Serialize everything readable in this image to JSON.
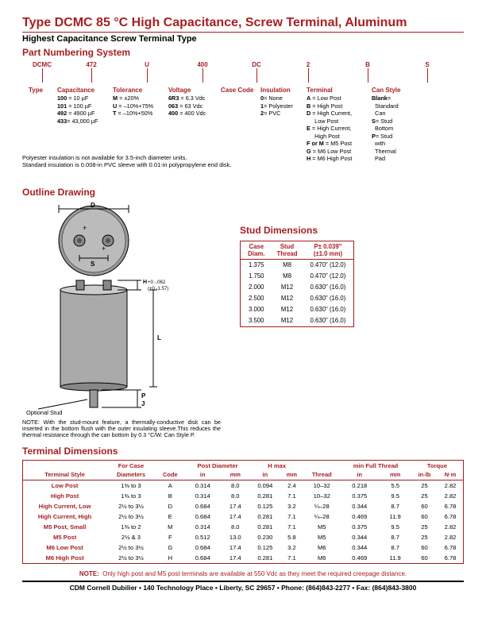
{
  "header": {
    "title": "Type DCMC 85 °C High Capacitance, Screw Terminal, Aluminum",
    "subtitle": "Highest Capacitance Screw Terminal Type",
    "section_partnum": "Part Numbering System",
    "section_outline": "Outline Drawing",
    "section_stud": "Stud Dimensions",
    "section_term": "Terminal Dimensions"
  },
  "partnum": {
    "top": [
      "DCMC",
      "472",
      "U",
      "400",
      "DC",
      "2",
      "B",
      "S"
    ],
    "cols": [
      {
        "hdr": "Type",
        "rows": []
      },
      {
        "hdr": "Capacitance",
        "rows": [
          "100 = 10 µF",
          "101 = 100 µF",
          "492 = 4900 µF",
          "433= 43,000 µF"
        ]
      },
      {
        "hdr": "Tolerance",
        "rows": [
          "M = ±20%",
          "U = –10%+75%",
          "T = –10%+50%"
        ]
      },
      {
        "hdr": "Voltage",
        "rows": [
          "6R3 = 6.3 Vdc",
          "063 = 63 Vdc",
          "400 = 400 Vdc"
        ]
      },
      {
        "hdr": "Case Code",
        "rows": []
      },
      {
        "hdr": "Insulation",
        "rows": [
          "0= None",
          "1= Polyester",
          "2= PVC"
        ]
      },
      {
        "hdr": "Terminal",
        "rows": [
          "A = Low Post",
          "B = High Post",
          "D = High Current,",
          "      Low Post",
          "E = High Current,",
          "      High Post",
          "F or M = M5 Post",
          "G = M6 Low Post",
          "H = M6 High Post"
        ]
      },
      {
        "hdr": "Can Style",
        "rows": [
          "Blank=",
          "   Standard",
          "   Can",
          "S= Stud",
          "   Bottom",
          "P= Stud",
          "   with",
          "   Thermal",
          "   Pad"
        ]
      }
    ],
    "note1": "Polyester insulation is not available for 3.5-inch diameter units.",
    "note2": "Standard insulation is 0.008-in PVC sleeve with 0.01-in polypropylene end disk."
  },
  "drawing": {
    "optional_stud": "Optional Stud",
    "h_tol": "H +0 -.062\n  (+0 -1.57)",
    "note": "NOTE: With the stud-mount feature, a thermally-conductive disk can be inserted in the bottom flush with the outer insulating sleeve.This reduces the thermal resistance through the can bottom by 0.3 °C/W. Can Style P.",
    "labels": {
      "D": "D",
      "S": "S",
      "L": "L",
      "P": "P",
      "J": "J"
    }
  },
  "stud_table": {
    "headers": [
      "Case\nDiam.",
      "Stud\nThread",
      "P± 0.039\"\n(±1.0 mm)"
    ],
    "rows": [
      [
        "1.375",
        "M8",
        "0.470\" (12.0)"
      ],
      [
        "1.750",
        "M8",
        "0.470\" (12.0)"
      ],
      [
        "2.000",
        "M12",
        "0.630\" (16.0)"
      ],
      [
        "2.500",
        "M12",
        "0.630\" (16.0)"
      ],
      [
        "3.000",
        "M12",
        "0.630\" (16.0)"
      ],
      [
        "3.500",
        "M12",
        "0.630\" (16.0)"
      ]
    ]
  },
  "term_table": {
    "group_headers": [
      "",
      "For Case",
      "",
      "Post Diameter",
      "H max",
      "",
      "min Full Thread",
      "Torque"
    ],
    "sub_headers": [
      "Terminal Style",
      "Diameters",
      "Code",
      "in",
      "mm",
      "in",
      "mm",
      "Thread",
      "in",
      "mm",
      "in-lb",
      "N·m"
    ],
    "rows": [
      [
        "Low Post",
        "1⅜ to 3",
        "A",
        "0.314",
        "8.0",
        "0.094",
        "2.4",
        "10–32",
        "0.218",
        "5.5",
        "25",
        "2.82"
      ],
      [
        "High Post",
        "1⅜ to 3",
        "B",
        "0.314",
        "8.0",
        "0.281",
        "7.1",
        "10–32",
        "0.375",
        "9.5",
        "25",
        "2.82"
      ],
      [
        "High Current, Low",
        "2½ to 3½",
        "D",
        "0.684",
        "17.4",
        "0.125",
        "3.2",
        "¼–28",
        "0.344",
        "8.7",
        "60",
        "6.78"
      ],
      [
        "High Current, High",
        "2½ to 3½",
        "E",
        "0.684",
        "17.4",
        "0.281",
        "7.1",
        "¼–28",
        "0.469",
        "11.9",
        "60",
        "6.78"
      ],
      [
        "M5 Post, Small",
        "1⅜ to 2",
        "M",
        "0.314",
        "8.0",
        "0.281",
        "7.1",
        "M5",
        "0.375",
        "9.5",
        "25",
        "2.82"
      ],
      [
        "M5 Post",
        "2½ & 3",
        "F",
        "0.512",
        "13.0",
        "0.230",
        "5.8",
        "M5",
        "0.344",
        "8.7",
        "25",
        "2.82"
      ],
      [
        "M6 Low Post",
        "2½ to 3½",
        "G",
        "0.684",
        "17.4",
        "0.125",
        "3.2",
        "M6",
        "0.344",
        "8.7",
        "60",
        "6.78"
      ],
      [
        "M6 High Post",
        "2½ to 3½",
        "H",
        "0.684",
        "17.4",
        "0.281",
        "7.1",
        "M6",
        "0.469",
        "11.9",
        "60",
        "6.78"
      ]
    ]
  },
  "bottom_note": "NOTE:  Only high post and M5 post terminals are available at 550 Vdc as they meet the required creepage distance.",
  "footer": "CDM Cornell Dubilier • 140 Technology Place • Liberty, SC 29657 • Phone: (864)843-2277 • Fax: (864)843-3800"
}
